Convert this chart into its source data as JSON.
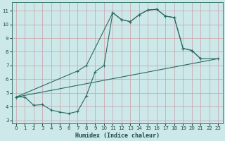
{
  "xlabel": "Humidex (Indice chaleur)",
  "bg_color": "#cce8e8",
  "grid_color": "#c8a0a8",
  "line_color": "#2a6a60",
  "xlim": [
    -0.5,
    23.5
  ],
  "ylim": [
    2.8,
    11.6
  ],
  "xticks": [
    0,
    1,
    2,
    3,
    4,
    5,
    6,
    7,
    8,
    9,
    10,
    11,
    12,
    13,
    14,
    15,
    16,
    17,
    18,
    19,
    20,
    21,
    22,
    23
  ],
  "yticks": [
    3,
    4,
    5,
    6,
    7,
    8,
    9,
    10,
    11
  ],
  "line1_x": [
    0,
    1,
    2,
    3,
    4,
    5,
    6,
    7,
    8,
    9,
    10,
    11,
    12,
    13,
    14,
    15,
    16,
    17,
    18,
    19,
    20,
    21
  ],
  "line1_y": [
    4.7,
    4.7,
    4.1,
    4.15,
    3.75,
    3.6,
    3.5,
    3.65,
    4.8,
    6.55,
    7.0,
    10.85,
    10.35,
    10.2,
    10.7,
    11.05,
    11.1,
    10.6,
    10.5,
    8.25,
    8.1,
    7.5
  ],
  "line2_x": [
    0,
    23
  ],
  "line2_y": [
    4.7,
    7.5
  ],
  "line3_x": [
    0,
    7,
    8,
    11,
    12,
    13,
    14,
    15,
    16,
    17,
    18,
    19,
    20,
    21,
    23
  ],
  "line3_y": [
    4.7,
    6.6,
    7.0,
    10.85,
    10.35,
    10.2,
    10.7,
    11.05,
    11.1,
    10.6,
    10.5,
    8.25,
    8.1,
    7.5,
    7.5
  ]
}
